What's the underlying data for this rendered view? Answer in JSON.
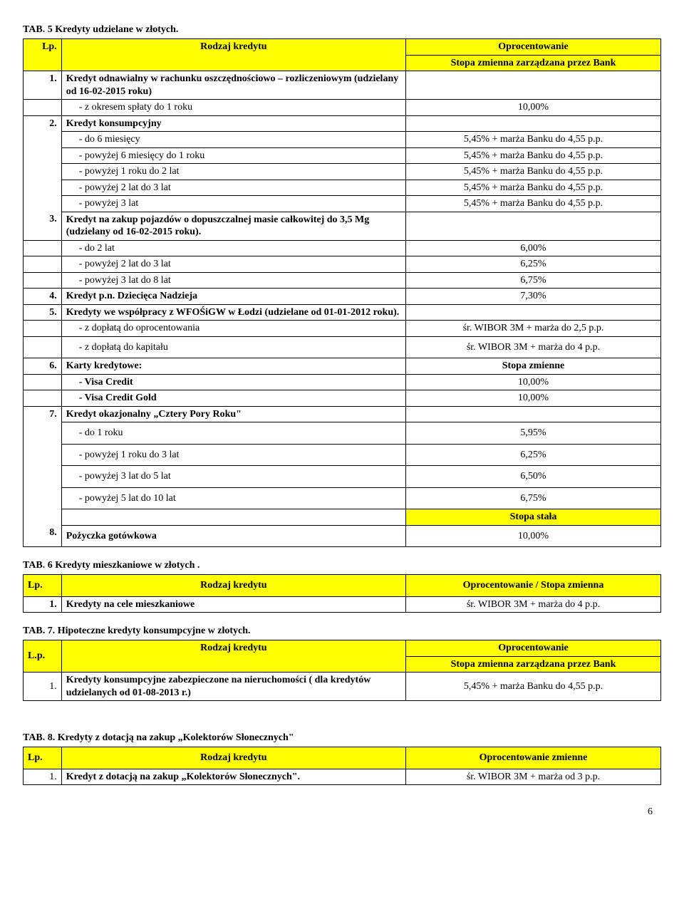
{
  "tab5": {
    "title": "TAB. 5 Kredyty udzielane w złotych.",
    "head_lp": "Lp.",
    "head_rodzaj": "Rodzaj kredytu",
    "head_val_top": "Oprocentowanie",
    "head_val_sub": "Stopa zmienna zarządzana przez Bank",
    "rows": [
      {
        "lp": "1.",
        "desc": "Kredyt odnawialny w rachunku oszczędnościowo – rozliczeniowym (udzielany od 16-02-2015 roku)",
        "val": "",
        "bold": true,
        "lpOpen": false
      },
      {
        "lp": "",
        "desc": "- z okresem spłaty do 1 roku",
        "val": "10,00%",
        "indent": 1
      },
      {
        "lp": "2.",
        "desc": "Kredyt konsumpcyjny",
        "val": "",
        "bold": true,
        "lpOpen": true
      },
      {
        "lp": "",
        "desc": "- do 6 miesięcy",
        "val": "5,45% + marża Banku do 4,55 p.p.",
        "indent": 1,
        "lpOpen": true
      },
      {
        "lp": "",
        "desc": "- powyżej 6 miesięcy do 1 roku",
        "val": "5,45% + marża Banku do 4,55 p.p.",
        "indent": 1,
        "lpOpen": true
      },
      {
        "lp": "",
        "desc": "- powyżej 1 roku do 2 lat",
        "val": "5,45% + marża Banku do 4,55 p.p.",
        "indent": 1,
        "lpOpen": true
      },
      {
        "lp": "",
        "desc": "- powyżej 2 lat do 3 lat",
        "val": "5,45% + marża Banku do 4,55 p.p.",
        "indent": 1,
        "lpOpen": true
      },
      {
        "lp": "",
        "desc": "- powyżej 3 lat",
        "val": "5,45% + marża Banku do 4,55 p.p.",
        "indent": 1,
        "lpOpen": true
      },
      {
        "lp": "3.",
        "desc": "Kredyt na zakup pojazdów o dopuszczalnej masie całkowitej do 3,5 Mg (udzielany od 16-02-2015 roku).",
        "val": "",
        "bold": true,
        "lpOpen": false
      },
      {
        "lp": "",
        "desc": "- do 2 lat",
        "val": "6,00%",
        "indent": 1
      },
      {
        "lp": "",
        "desc": "- powyżej 2 lat do 3 lat",
        "val": "6,25%",
        "indent": 1
      },
      {
        "lp": "",
        "desc": "- powyżej 3 lat do 8 lat",
        "val": "6,75%",
        "indent": 1
      },
      {
        "lp": "4.",
        "desc": "Kredyt p.n. Dziecięca Nadzieja",
        "val": "7,30%",
        "bold": true
      },
      {
        "lp": "5.",
        "desc": "Kredyty we współpracy z WFOŚiGW w Łodzi (udzielane od 01-01-2012 roku).",
        "val": "",
        "bold": true
      },
      {
        "lp": "",
        "desc": "- z dopłatą do oprocentowania",
        "val": "śr. WIBOR 3M + marża do 2,5 p.p.",
        "indent": 1
      },
      {
        "lp": "",
        "desc": "- z dopłatą do kapitału",
        "val": "śr. WIBOR 3M + marża do 4 p.p.",
        "indent": 1,
        "tall": true
      },
      {
        "lp": "6.",
        "desc": "Karty kredytowe:",
        "val": "Stopa zmienne",
        "bold": true,
        "valBold": true
      },
      {
        "lp": "",
        "desc": "- Visa Credit",
        "val": "10,00%",
        "indent": 1,
        "descBold": true
      },
      {
        "lp": "",
        "desc": "- Visa Credit Gold",
        "val": "10,00%",
        "indent": 1,
        "descBold": true
      },
      {
        "lp": "7.",
        "desc": "Kredyt okazjonalny „Cztery Pory Roku\"",
        "val": "",
        "bold": true,
        "lpOpen": true
      },
      {
        "lp": "",
        "desc": "- do 1 roku",
        "val": "5,95%",
        "indent": 1,
        "tall": true,
        "lpOpen": true
      },
      {
        "lp": "",
        "desc": "- powyżej 1 roku do 3 lat",
        "val": "6,25%",
        "indent": 1,
        "tall": true,
        "lpOpen": true
      },
      {
        "lp": "",
        "desc": "- powyżej 3 lat do 5 lat",
        "val": "6,50%",
        "indent": 1,
        "tall": true,
        "lpOpen": true
      },
      {
        "lp": "",
        "desc": "- powyżej 5 lat do 10 lat",
        "val": "6,75%",
        "indent": 1,
        "tall": true,
        "lpOpen": true
      },
      {
        "lp": "",
        "desc": "",
        "val": "Stopa stała",
        "yellow": true,
        "valBold": true,
        "lpOpen": true
      },
      {
        "lp": "8.",
        "desc": "Pożyczka gotówkowa",
        "val": "10,00%",
        "bold": true,
        "tall": true
      }
    ]
  },
  "tab6": {
    "title": "TAB. 6 Kredyty mieszkaniowe w złotych .",
    "head_lp": "Lp.",
    "head_rodzaj": "Rodzaj kredytu",
    "head_val": "Oprocentowanie / Stopa zmienna",
    "row_lp": "1.",
    "row_desc": "Kredyty na cele mieszkaniowe",
    "row_val": "śr. WIBOR 3M + marża do 4 p.p."
  },
  "tab7": {
    "title": "TAB. 7. Hipoteczne kredyty konsumpcyjne w złotych.",
    "head_lp": "L.p.",
    "head_rodzaj": "Rodzaj kredytu",
    "head_val_top": "Oprocentowanie",
    "head_val_sub": "Stopa zmienna zarządzana przez Bank",
    "row_lp": "1.",
    "row_desc": "Kredyty konsumpcyjne zabezpieczone na nieruchomości ( dla kredytów udzielanych od 01-08-2013 r.)",
    "row_val": "5,45% + marża Banku do 4,55 p.p."
  },
  "tab8": {
    "title": "TAB. 8. Kredyty z dotacją  na zakup „Kolektorów Słonecznych\"",
    "head_lp": "Lp.",
    "head_rodzaj": "Rodzaj kredytu",
    "head_val": "Oprocentowanie zmienne",
    "row_lp": "1.",
    "row_desc": "Kredyt z dotacją na zakup „Kolektorów Słonecznych\".",
    "row_val": "śr. WIBOR 3M + marża  od 3 p.p."
  },
  "page_number": "6"
}
